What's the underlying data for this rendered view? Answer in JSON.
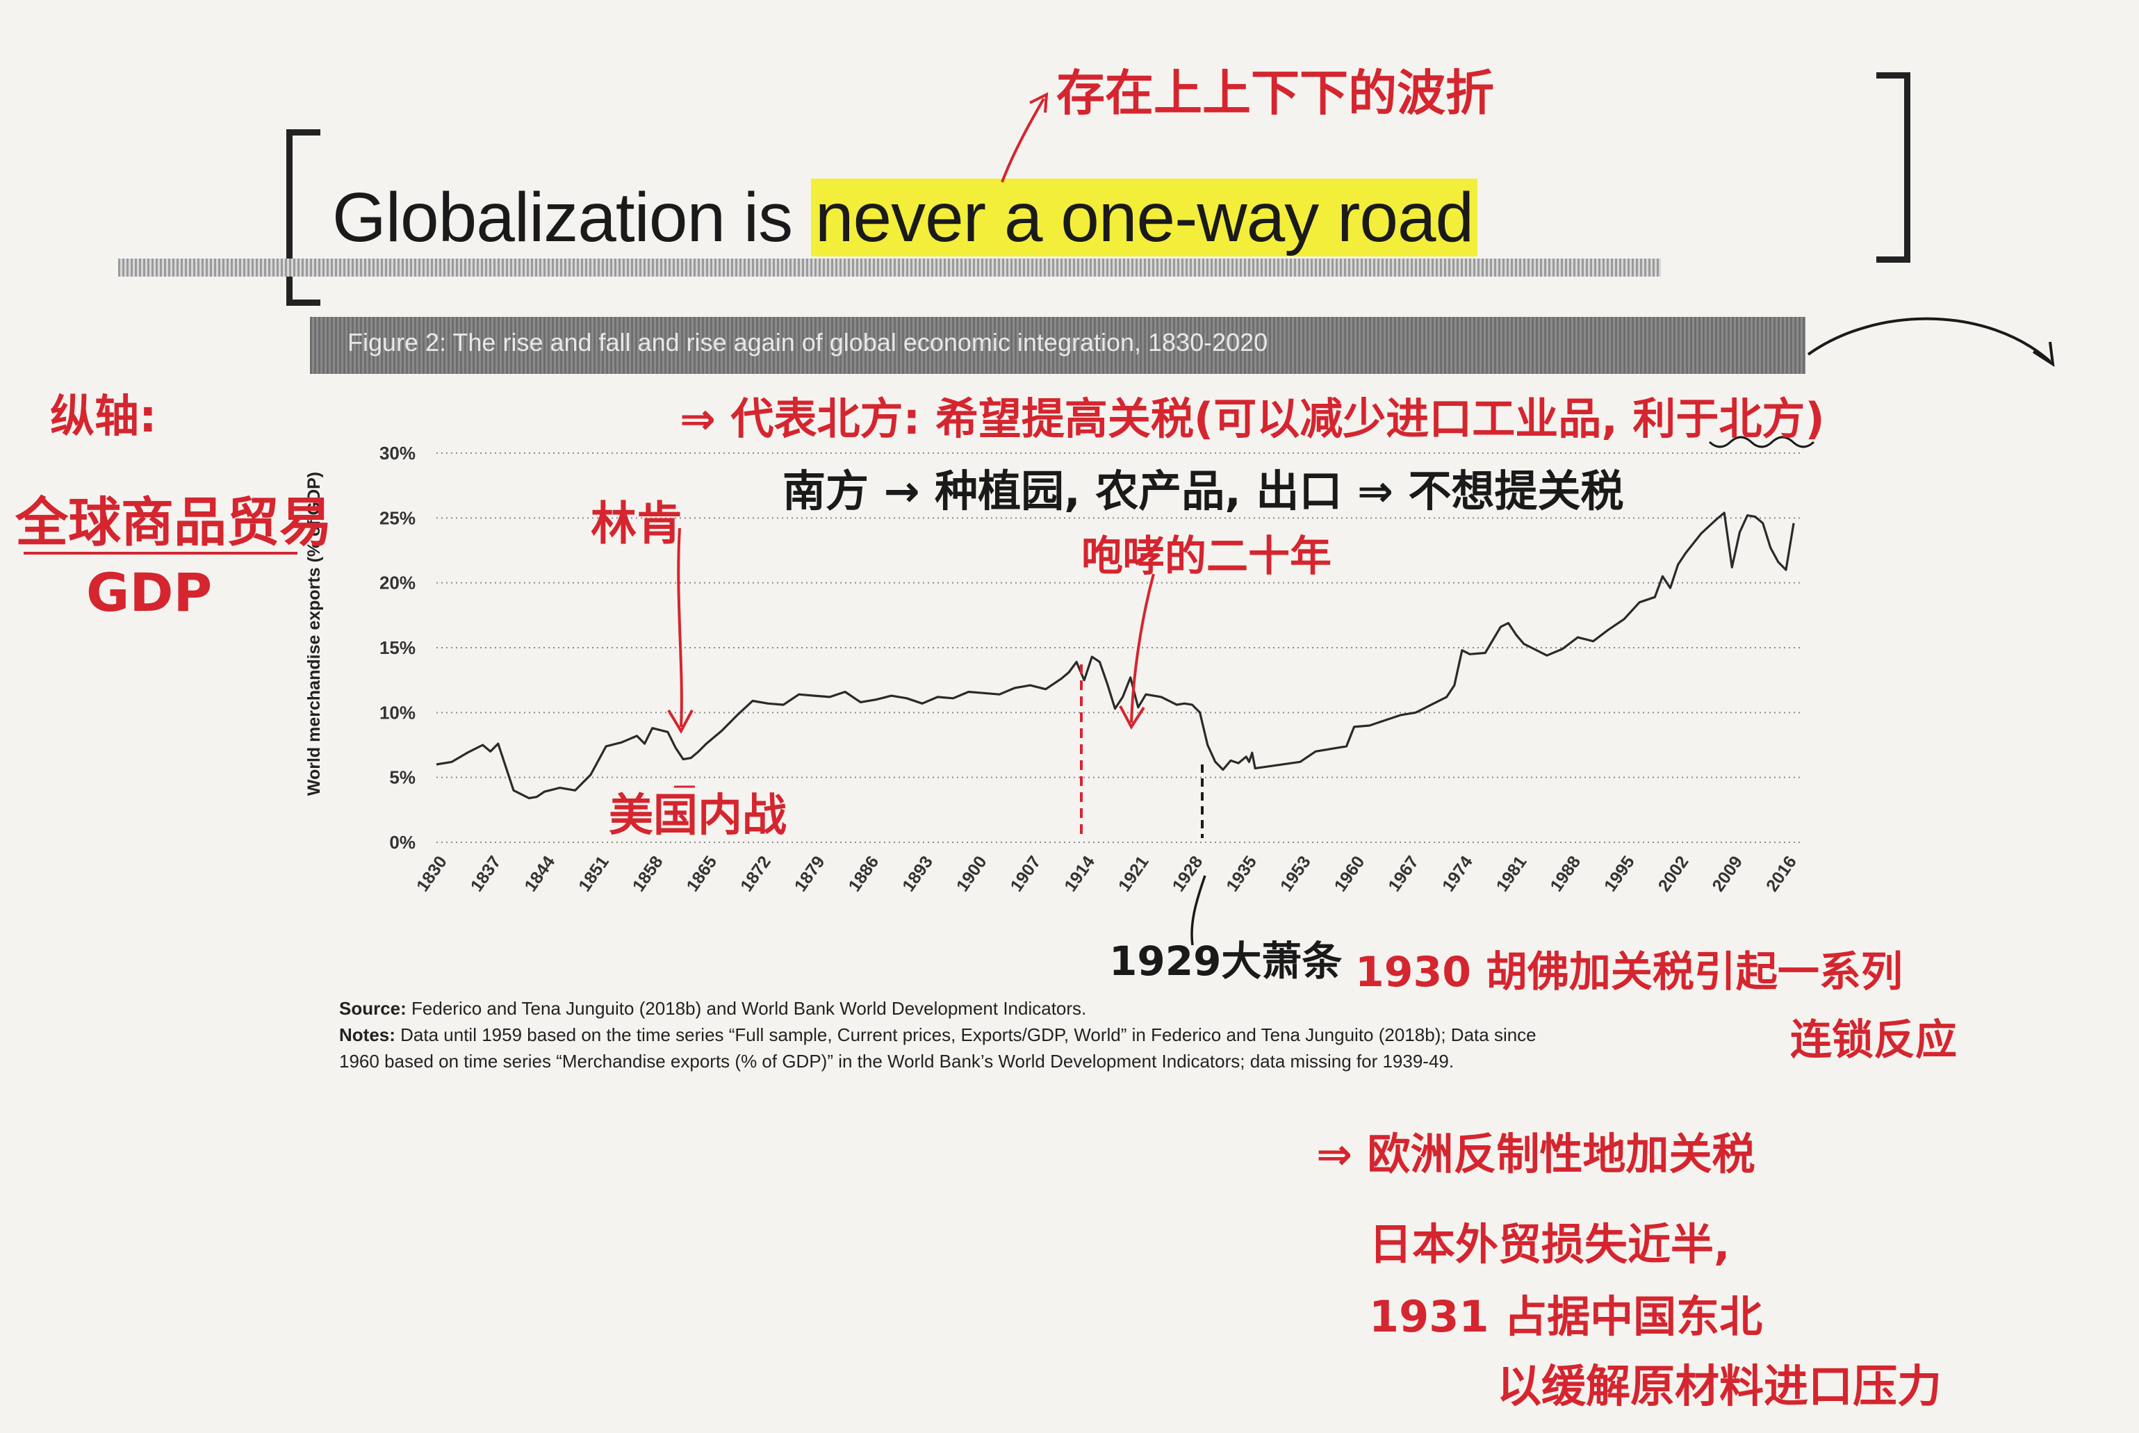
{
  "colors": {
    "ink_red": "#d5252f",
    "highlight": "#f3ee3a",
    "line": "#2a2a2a"
  },
  "title": {
    "pre": "Globalization is ",
    "highlight": "never a one-way road"
  },
  "figure_caption": "Figure 2: The rise and fall and rise again of global economic integration, 1830-2020",
  "source": {
    "source_label": "Source:",
    "source_text": "Federico and Tena Junguito (2018b) and World Bank World Development Indicators.",
    "notes_label": "Notes:",
    "notes_line1": "Data until 1959 based on the time series “Full sample, Current prices, Exports/GDP, World” in Federico and Tena Junguito (2018b); Data since",
    "notes_line2": "1960 based on time series “Merchandise exports (% of GDP)” in the World Bank’s World Development Indicators; data missing for 1939-49."
  },
  "annotations": {
    "top_note": "存在上上下下的波折",
    "yaxis_note": "纵轴:",
    "ratio_top": "全球商品贸易",
    "ratio_bottom": "GDP",
    "north": "⇒ 代表北方: 希望提高关税(可以减少进口工业品, 利于北方)",
    "south": "南方 → 种植园, 农产品, 出口 ⇒ 不想提关税",
    "lincoln": "林肯",
    "roaring": "咆哮的二十年",
    "civil_war": "美国内战",
    "depression": "1929大萧条",
    "tariff_1930": "1930 胡佛加关税引起一系列",
    "chain": "连锁反应",
    "europe": "⇒ 欧洲反制性地加关税",
    "japan": "日本外贸损失近半,",
    "manchuria": "1931 占据中国东北",
    "relieve": "以缓解原材料进口压力"
  },
  "chart_data": {
    "type": "line",
    "title": "Figure 2: The rise and fall and rise again of global economic integration, 1830-2020",
    "ylabel": "World merchandise exports (% of GDP)",
    "xlabel": "",
    "ylim": [
      0,
      30
    ],
    "yticks": [
      "0%",
      "5%",
      "10%",
      "15%",
      "20%",
      "25%",
      "30%"
    ],
    "xticks": [
      "1830",
      "1837",
      "1844",
      "1851",
      "1858",
      "1865",
      "1872",
      "1879",
      "1886",
      "1893",
      "1900",
      "1907",
      "1914",
      "1921",
      "1928",
      "1935",
      "1953",
      "1960",
      "1967",
      "1974",
      "1981",
      "1988",
      "1995",
      "2002",
      "2009",
      "2016"
    ],
    "grid": "horizontal dotted",
    "series": [
      {
        "x": [
          "1830",
          "1832",
          "1834",
          "1836",
          "1837",
          "1838",
          "1840",
          "1842",
          "1843",
          "1844",
          "1846",
          "1848",
          "1850",
          "1852",
          "1854",
          "1856",
          "1857",
          "1858",
          "1860",
          "1861",
          "1862",
          "1863",
          "1864",
          "1865",
          "1867",
          "1869",
          "1871",
          "1873",
          "1875",
          "1877",
          "1879",
          "1881",
          "1883",
          "1885",
          "1887",
          "1889",
          "1891",
          "1893",
          "1895",
          "1897",
          "1899",
          "1901",
          "1903",
          "1905",
          "1907",
          "1909",
          "1911",
          "1912",
          "1913",
          "1914",
          "1915",
          "1916",
          "1917",
          "1918",
          "1919",
          "1920",
          "1921",
          "1922",
          "1924",
          "1926",
          "1927",
          "1928",
          "1929",
          "1930",
          "1931",
          "1932",
          "1933",
          "1934",
          "1935",
          "1936",
          "1937",
          "1938",
          "1953",
          "1955",
          "1957",
          "1959",
          "1960",
          "1962",
          "1964",
          "1966",
          "1968",
          "1970",
          "1972",
          "1973",
          "1974",
          "1975",
          "1977",
          "1979",
          "1980",
          "1981",
          "1982",
          "1983",
          "1985",
          "1987",
          "1989",
          "1991",
          "1993",
          "1995",
          "1997",
          "1999",
          "2000",
          "2001",
          "2002",
          "2003",
          "2005",
          "2007",
          "2008",
          "2009",
          "2010",
          "2011",
          "2012",
          "2013",
          "2014",
          "2015",
          "2016",
          "2017"
        ],
        "y": [
          6,
          6.2,
          6.9,
          7.5,
          7,
          7.6,
          4,
          3.4,
          3.5,
          3.9,
          4.2,
          4,
          5.2,
          7.4,
          7.7,
          8.2,
          7.6,
          8.8,
          8.5,
          7.3,
          6.4,
          6.5,
          7,
          7.6,
          8.6,
          9.8,
          10.9,
          10.7,
          10.6,
          11.4,
          11.3,
          11.2,
          11.6,
          10.8,
          11,
          11.3,
          11.1,
          10.7,
          11.2,
          11.1,
          11.6,
          11.5,
          11.4,
          11.9,
          12.1,
          11.8,
          12.6,
          13.1,
          13.9,
          12.5,
          14.3,
          13.9,
          12.2,
          10.3,
          11.2,
          12.7,
          10.4,
          11.4,
          11.2,
          10.6,
          10.7,
          10.6,
          10,
          7.5,
          6.2,
          5.6,
          6.3,
          6.1,
          6.6,
          6.2,
          6.9,
          5.7,
          6.2,
          7,
          7.2,
          7.4,
          8.9,
          9,
          9.4,
          9.8,
          10,
          10.6,
          11.2,
          12.1,
          14.8,
          14.5,
          14.6,
          16.6,
          16.9,
          16,
          15.3,
          15,
          14.4,
          14.9,
          15.8,
          15.5,
          16.4,
          17.2,
          18.5,
          18.9,
          20.5,
          19.6,
          21.4,
          22.3,
          23.8,
          24.9,
          25.4,
          21.2,
          23.9,
          25.2,
          25.1,
          24.6,
          22.7,
          21.6,
          21,
          24.6
        ]
      }
    ]
  }
}
